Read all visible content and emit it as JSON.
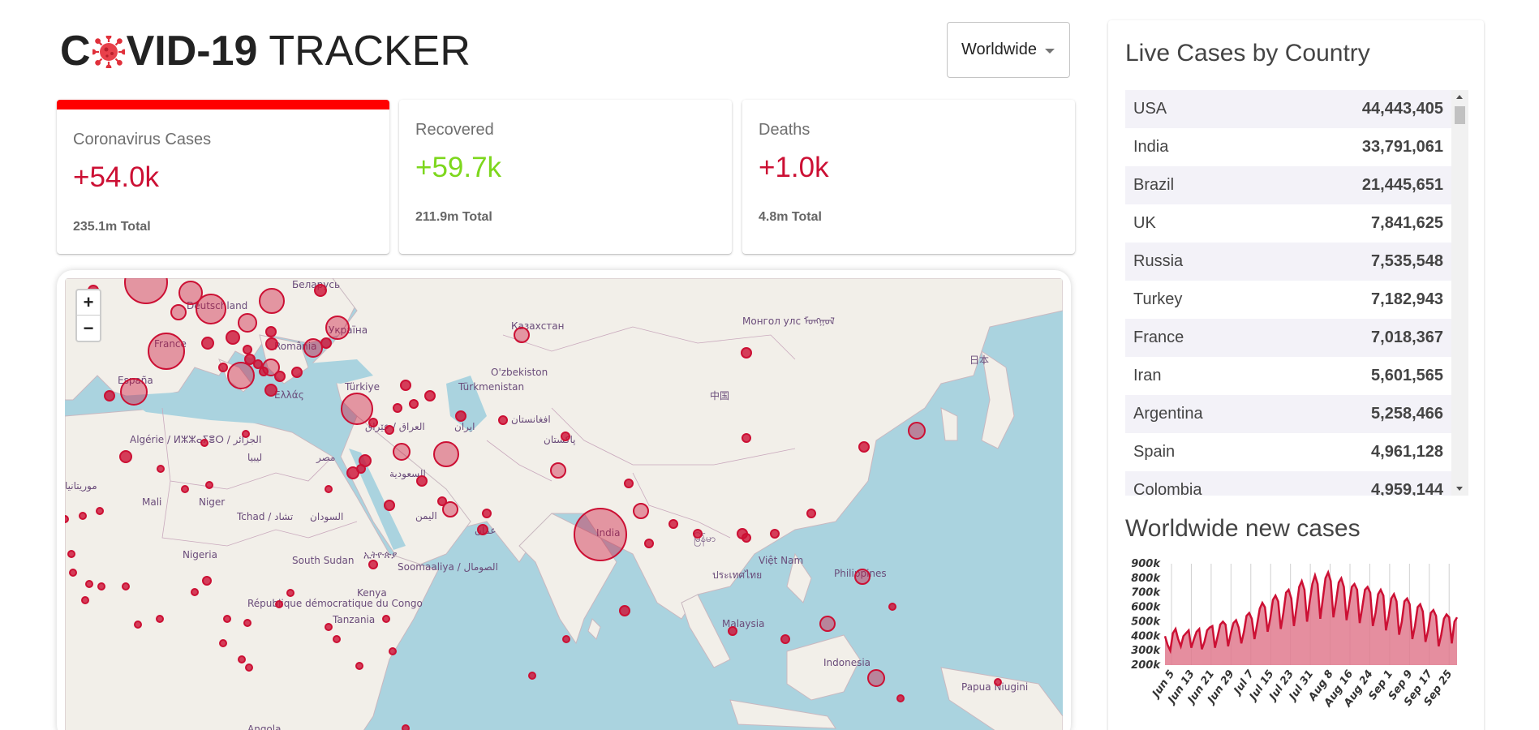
{
  "header": {
    "logo_part1": "C",
    "logo_part2": "VID-19",
    "logo_part3": "TRACKER",
    "dropdown_value": "Worldwide"
  },
  "stats": {
    "cases": {
      "title": "Coronavirus Cases",
      "value": "+54.0k",
      "total": "235.1m Total",
      "color": "#cc1034"
    },
    "recovered": {
      "title": "Recovered",
      "value": "+59.7k",
      "total": "211.9m Total",
      "color": "#7dd71d"
    },
    "deaths": {
      "title": "Deaths",
      "value": "+1.0k",
      "total": "4.8m Total",
      "color": "#cc1034"
    }
  },
  "map": {
    "zoom_in": "+",
    "zoom_out": "−",
    "labels": [
      "Беларусь",
      "Deutschland",
      "France",
      "España",
      "Україна",
      "România",
      "Ελλάς",
      "Türkiye",
      "Казахстан",
      "Монгол улс ᠮᠤᠩᠭᠤᠯ",
      "O'zbekiston",
      "Türkmenistan",
      "中国",
      "日本",
      "افغانستان",
      "پاکستان",
      "ایران",
      "العراق / عێراق",
      "مصر",
      "السعودية",
      "ليبيا",
      "Algérie / ⵍⵣⵣⴰⵢⴻⵔ / الجزائر",
      "موريتانيا",
      "Mali",
      "Niger",
      "Tchad / تشاد",
      "السودان",
      "اليمن",
      "Nigeria",
      "South Sudan",
      "ኢትዮጵያ",
      "Soomaaliya / الصومال",
      "Kenya",
      "République démocratique du Congo",
      "Tanzania",
      "Angola",
      "India",
      "မြန်မာ",
      "Việt Nam",
      "ประเทศไทย",
      "Philippines",
      "Malaysia",
      "Indonesia",
      "Papua Niugini",
      "عمان"
    ],
    "bubble_color": "#cc1034"
  },
  "panel": {
    "live_title": "Live Cases by Country",
    "countries": [
      {
        "name": "USA",
        "cases": "44,443,405"
      },
      {
        "name": "India",
        "cases": "33,791,061"
      },
      {
        "name": "Brazil",
        "cases": "21,445,651"
      },
      {
        "name": "UK",
        "cases": "7,841,625"
      },
      {
        "name": "Russia",
        "cases": "7,535,548"
      },
      {
        "name": "Turkey",
        "cases": "7,182,943"
      },
      {
        "name": "France",
        "cases": "7,018,367"
      },
      {
        "name": "Iran",
        "cases": "5,601,565"
      },
      {
        "name": "Argentina",
        "cases": "5,258,466"
      },
      {
        "name": "Spain",
        "cases": "4,961,128"
      },
      {
        "name": "Colombia",
        "cases": "4,959,144"
      }
    ],
    "chart_title": "Worldwide new cases"
  },
  "chart_data": {
    "type": "area",
    "title": "Worldwide new cases",
    "xlabel": "",
    "ylabel": "",
    "ylim": [
      200000,
      900000
    ],
    "y_ticks": [
      "900k",
      "800k",
      "700k",
      "600k",
      "500k",
      "400k",
      "300k",
      "200k"
    ],
    "x_ticks": [
      "Jun 5",
      "Jun 13",
      "Jun 21",
      "Jun 29",
      "Jul 7",
      "Jul 15",
      "Jul 23",
      "Jul 31",
      "Aug 8",
      "Aug 16",
      "Aug 24",
      "Sep 1",
      "Sep 9",
      "Sep 17",
      "Sep 25"
    ],
    "values": [
      400000,
      340000,
      300000,
      420000,
      450000,
      380000,
      330000,
      400000,
      420000,
      440000,
      320000,
      380000,
      430000,
      450000,
      310000,
      360000,
      440000,
      460000,
      470000,
      320000,
      400000,
      480000,
      500000,
      480000,
      330000,
      420000,
      490000,
      510000,
      460000,
      350000,
      430000,
      540000,
      560000,
      520000,
      380000,
      480000,
      590000,
      630000,
      600000,
      430000,
      520000,
      650000,
      680000,
      640000,
      450000,
      560000,
      700000,
      720000,
      660000,
      470000,
      600000,
      740000,
      780000,
      720000,
      500000,
      640000,
      760000,
      820000,
      760000,
      520000,
      660000,
      800000,
      840000,
      780000,
      530000,
      640000,
      770000,
      800000,
      740000,
      510000,
      620000,
      740000,
      760000,
      720000,
      490000,
      600000,
      720000,
      740000,
      700000,
      470000,
      560000,
      690000,
      720000,
      680000,
      440000,
      540000,
      660000,
      690000,
      640000,
      410000,
      500000,
      640000,
      660000,
      620000,
      380000,
      470000,
      600000,
      620000,
      570000,
      360000,
      440000,
      560000,
      580000,
      540000,
      330000,
      410000,
      520000,
      550000,
      530000,
      350000,
      500000,
      530000
    ],
    "fill_color": "#e07a8e",
    "line_color": "#cc1034",
    "grid": "vertical"
  }
}
